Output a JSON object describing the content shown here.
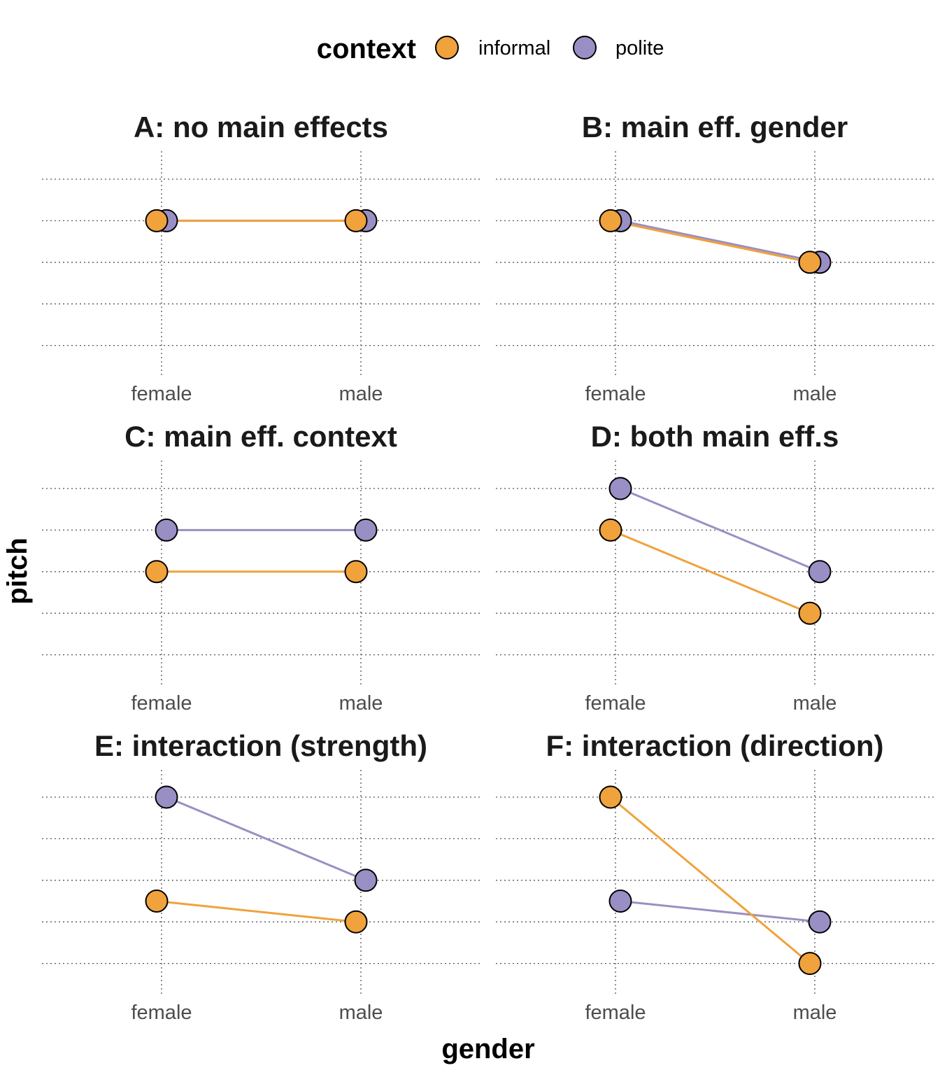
{
  "legend": {
    "title": "context",
    "items": [
      {
        "label": "informal",
        "color": "#F0A23C"
      },
      {
        "label": "polite",
        "color": "#9A8FC4"
      }
    ]
  },
  "axes": {
    "xlabel": "gender",
    "ylabel": "pitch"
  },
  "chart_data": [
    {
      "type": "line",
      "title": "A: no main effects",
      "categories": [
        "female",
        "male"
      ],
      "ylim": [
        1,
        5
      ],
      "series": [
        {
          "name": "informal",
          "values": [
            4,
            4
          ]
        },
        {
          "name": "polite",
          "values": [
            4,
            4
          ]
        }
      ]
    },
    {
      "type": "line",
      "title": "B: main eff. gender",
      "categories": [
        "female",
        "male"
      ],
      "ylim": [
        1,
        5
      ],
      "series": [
        {
          "name": "informal",
          "values": [
            4,
            3
          ]
        },
        {
          "name": "polite",
          "values": [
            4,
            3
          ]
        }
      ]
    },
    {
      "type": "line",
      "title": "C: main eff. context",
      "categories": [
        "female",
        "male"
      ],
      "ylim": [
        1,
        5
      ],
      "series": [
        {
          "name": "informal",
          "values": [
            3,
            3
          ]
        },
        {
          "name": "polite",
          "values": [
            4,
            4
          ]
        }
      ]
    },
    {
      "type": "line",
      "title": "D: both main eff.s",
      "categories": [
        "female",
        "male"
      ],
      "ylim": [
        1,
        5
      ],
      "series": [
        {
          "name": "informal",
          "values": [
            4,
            2
          ]
        },
        {
          "name": "polite",
          "values": [
            5,
            3
          ]
        }
      ]
    },
    {
      "type": "line",
      "title": "E: interaction (strength)",
      "categories": [
        "female",
        "male"
      ],
      "ylim": [
        1,
        5
      ],
      "series": [
        {
          "name": "informal",
          "values": [
            2.5,
            2
          ]
        },
        {
          "name": "polite",
          "values": [
            5,
            3
          ]
        }
      ]
    },
    {
      "type": "line",
      "title": "F: interaction (direction)",
      "categories": [
        "female",
        "male"
      ],
      "ylim": [
        1,
        5
      ],
      "series": [
        {
          "name": "informal",
          "values": [
            5,
            1
          ]
        },
        {
          "name": "polite",
          "values": [
            2.5,
            2
          ]
        }
      ]
    }
  ]
}
